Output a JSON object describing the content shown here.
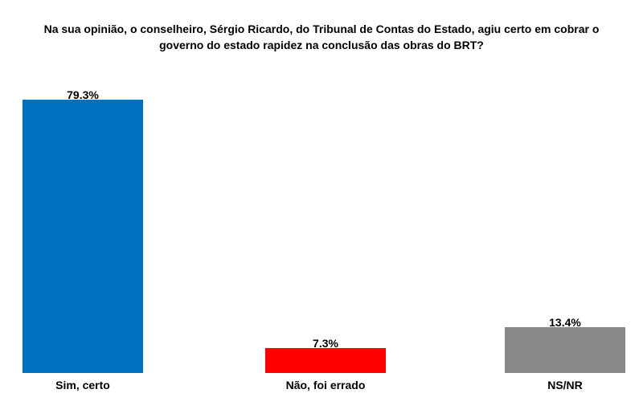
{
  "title": {
    "line1": "Na sua opinião, o conselheiro, Sérgio Ricardo, do Tribunal de Contas do Estado, agiu certo em cobrar o",
    "line2": "governo do estado rapidez na conclusão das obras do BRT?"
  },
  "chart_data": {
    "type": "bar",
    "title": "Na sua opinião, o conselheiro, Sérgio Ricardo, do Tribunal de Contas do Estado, agiu certo em cobrar o governo do estado rapidez na conclusão das obras do BRT?",
    "categories": [
      "Sim, certo",
      "Não, foi errado",
      "NS/NR"
    ],
    "values": [
      79.3,
      7.3,
      13.4
    ],
    "value_labels": [
      "79.3%",
      "7.3%",
      "13.4%"
    ],
    "colors": [
      "#0070C0",
      "#FF0000",
      "#898989"
    ],
    "xlabel": "",
    "ylabel": "",
    "ylim": [
      0,
      100
    ],
    "grid": false,
    "legend": false,
    "axis_lines": false,
    "background": "#FFFFFF"
  }
}
